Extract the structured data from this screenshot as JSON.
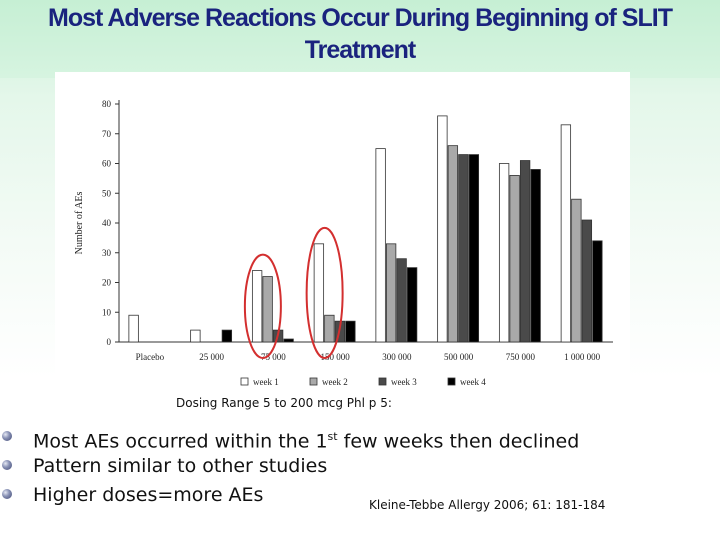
{
  "slide": {
    "title_line1": "Most Adverse Reactions Occur During Beginning of SLIT",
    "title_line2": "Treatment",
    "caption": "Dosing Range 5 to 200 mcg Phl p 5:",
    "bullets": [
      {
        "pre": "Most AEs occurred within the 1",
        "sup": "st",
        "post": " few weeks then declined"
      },
      {
        "pre": "Pattern similar to other studies",
        "sup": "",
        "post": ""
      },
      {
        "pre": "Higher doses=more AEs",
        "sup": "",
        "post": ""
      }
    ],
    "citation": "Kleine-Tebbe Allergy 2006; 61: 181-184",
    "colors": {
      "title": "#1a237e",
      "highlight_circle": "#d32f2f",
      "background": "#d6f4e0"
    }
  },
  "chart_data": {
    "type": "bar",
    "title": "",
    "xlabel": "",
    "ylabel": "Number of AEs",
    "ylim": [
      0,
      80
    ],
    "yticks": [
      0,
      10,
      20,
      30,
      40,
      50,
      60,
      70,
      80
    ],
    "grid": false,
    "legend_position": "bottom",
    "categories": [
      "Placebo",
      "25 000",
      "75 000",
      "150 000",
      "300 000",
      "500 000",
      "750 000",
      "1 000 000"
    ],
    "series": [
      {
        "name": "week 1",
        "color": "#ffffff",
        "values": [
          9,
          4,
          24,
          33,
          65,
          76,
          60,
          73
        ]
      },
      {
        "name": "week 2",
        "color": "#a9a9a9",
        "values": [
          null,
          null,
          22,
          9,
          33,
          66,
          56,
          48
        ]
      },
      {
        "name": "week 3",
        "color": "#4a4a4a",
        "values": [
          null,
          null,
          4,
          7,
          28,
          63,
          61,
          41
        ]
      },
      {
        "name": "week 4",
        "color": "#000000",
        "values": [
          null,
          4,
          1,
          7,
          25,
          63,
          58,
          34
        ]
      }
    ],
    "highlighted_categories": [
      "75 000",
      "150 000"
    ]
  }
}
